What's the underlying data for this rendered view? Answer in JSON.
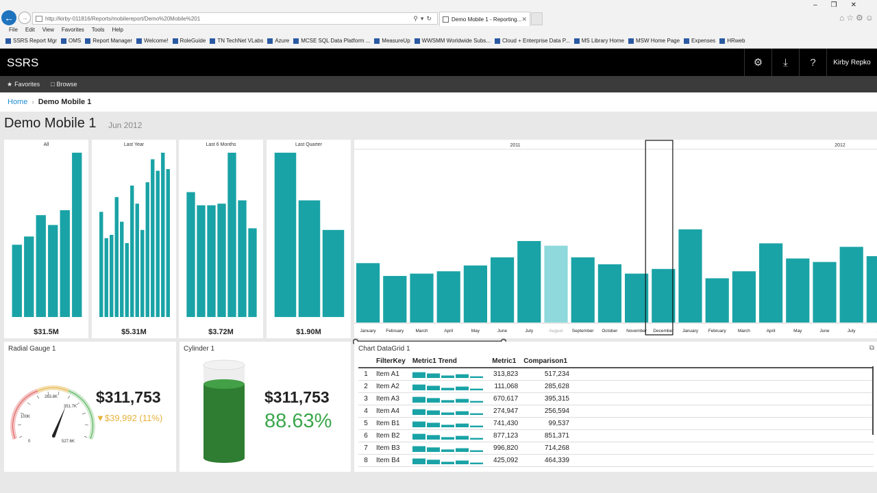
{
  "browser": {
    "url": "http://kirby-011816/Reports/mobilereport/Demo%20Mobile%201",
    "tab_title": "Demo Mobile 1 - Reporting...",
    "menu": [
      "File",
      "Edit",
      "View",
      "Favorites",
      "Tools",
      "Help"
    ],
    "favorites": [
      "SSRS Report Mgr",
      "OMS",
      "Report Manager",
      "Welcome!",
      "RoleGuide",
      "TN TechNet VLabs",
      "Azure",
      "MCSE SQL Data Platform ...",
      "MeasureUp",
      "WWSMM Worldwide Subs...",
      "Cloud + Enterprise Data P...",
      "MS Library Home",
      "MSW Home Page",
      "Expenses",
      "HRweb"
    ]
  },
  "header": {
    "app_title": "SSRS",
    "user": "Kirby Repko",
    "nav": {
      "favorites": "Favorites",
      "browse": "Browse"
    }
  },
  "breadcrumb": {
    "home": "Home",
    "current": "Demo Mobile 1"
  },
  "report": {
    "title": "Demo Mobile 1",
    "period": "Jun 2012"
  },
  "colors": {
    "teal": "#1aa3a6",
    "teal_light": "#8fd9dc",
    "green": "#2e7d32",
    "green_text": "#3aa64a",
    "amber": "#e6b23c"
  },
  "summary_tiles": [
    {
      "title": "All",
      "total": "$31.5M",
      "values": [
        0.44,
        0.49,
        0.62,
        0.56,
        0.65,
        1.0
      ]
    },
    {
      "title": "Last Year",
      "total": "$5.31M",
      "values": [
        0.64,
        0.48,
        0.5,
        0.73,
        0.58,
        0.45,
        0.8,
        0.69,
        0.53,
        0.82,
        0.96,
        0.89,
        1.0,
        0.9
      ]
    },
    {
      "title": "Last 6 Months",
      "total": "$3.72M",
      "values": [
        0.76,
        0.68,
        0.68,
        0.69,
        1.0,
        0.71,
        0.54
      ]
    },
    {
      "title": "Last Quarter",
      "total": "$1.90M",
      "values": [
        1.0,
        0.71,
        0.53
      ]
    }
  ],
  "timeline": {
    "years": [
      "2011",
      "2012"
    ],
    "months": [
      "January",
      "February",
      "March",
      "April",
      "May",
      "June",
      "July",
      "August",
      "September",
      "October",
      "November",
      "December",
      "January",
      "February",
      "March",
      "April",
      "May",
      "June",
      "July",
      "A"
    ],
    "values": [
      0.51,
      0.4,
      0.42,
      0.44,
      0.49,
      0.56,
      0.7,
      0.66,
      0.56,
      0.5,
      0.42,
      0.46,
      0.8,
      0.38,
      0.44,
      0.68,
      0.55,
      0.52,
      0.65,
      0.57
    ],
    "highlighted_index": 7,
    "selected_index": 11
  },
  "gauge": {
    "title": "Radial Gauge 1",
    "value": "$311,753",
    "delta": "▼$39,992 (11%)",
    "labels": [
      "0",
      "100K",
      "263.8K",
      "351.7K",
      "527.6K"
    ]
  },
  "cylinder": {
    "title": "Cylinder 1",
    "value": "$311,753",
    "percent": "88.63%",
    "fill": 0.8863
  },
  "datagrid": {
    "title": "Chart DataGrid 1",
    "columns": [
      "FilterKey",
      "Metric1 Trend",
      "Metric1",
      "Comparison1"
    ],
    "rows": [
      {
        "n": "1",
        "key": "Item A1",
        "trend": [
          0.7,
          0.55,
          0.3,
          0.45,
          0.2
        ],
        "metric": "313,823",
        "comp": "517,234"
      },
      {
        "n": "2",
        "key": "Item A2",
        "trend": [
          0.7,
          0.55,
          0.3,
          0.45,
          0.2
        ],
        "metric": "111,068",
        "comp": "285,628"
      },
      {
        "n": "3",
        "key": "Item A3",
        "trend": [
          0.7,
          0.55,
          0.3,
          0.45,
          0.2
        ],
        "metric": "670,617",
        "comp": "395,315"
      },
      {
        "n": "4",
        "key": "Item A4",
        "trend": [
          0.7,
          0.55,
          0.3,
          0.45,
          0.2
        ],
        "metric": "274,947",
        "comp": "256,594"
      },
      {
        "n": "5",
        "key": "Item B1",
        "trend": [
          0.7,
          0.55,
          0.3,
          0.45,
          0.2
        ],
        "metric": "741,430",
        "comp": "99,537"
      },
      {
        "n": "6",
        "key": "Item B2",
        "trend": [
          0.7,
          0.55,
          0.3,
          0.45,
          0.2
        ],
        "metric": "877,123",
        "comp": "851,371"
      },
      {
        "n": "7",
        "key": "Item B3",
        "trend": [
          0.7,
          0.55,
          0.3,
          0.45,
          0.2
        ],
        "metric": "996,820",
        "comp": "714,268"
      },
      {
        "n": "8",
        "key": "Item B4",
        "trend": [
          0.7,
          0.55,
          0.3,
          0.45,
          0.2
        ],
        "metric": "425,092",
        "comp": "464,339"
      }
    ]
  }
}
